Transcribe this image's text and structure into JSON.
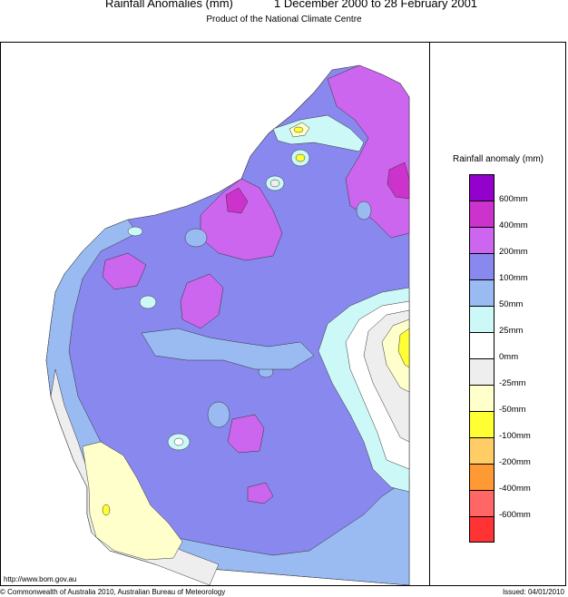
{
  "header": {
    "title": "Rainfall Anomalies (mm)",
    "period": "1 December 2000 to 28 February 2001",
    "subtitle": "Product of the National Climate Centre"
  },
  "legend": {
    "title": "Rainfall anomaly (mm)",
    "items": [
      {
        "label": "600mm",
        "color": "#9400cc"
      },
      {
        "label": "400mm",
        "color": "#cc33cc"
      },
      {
        "label": "200mm",
        "color": "#cc66ee"
      },
      {
        "label": "100mm",
        "color": "#8888ee"
      },
      {
        "label": "50mm",
        "color": "#99bbf2"
      },
      {
        "label": "25mm",
        "color": "#ccf8f8"
      },
      {
        "label": "0mm",
        "color": "#ffffff"
      },
      {
        "label": "-25mm",
        "color": "#eeeeee"
      },
      {
        "label": "-50mm",
        "color": "#ffffcc"
      },
      {
        "label": "-100mm",
        "color": "#ffff33"
      },
      {
        "label": "-200mm",
        "color": "#ffcc66"
      },
      {
        "label": "-400mm",
        "color": "#ff9933"
      },
      {
        "label": "-600mm",
        "color": "#ff6666"
      },
      {
        "label": "",
        "color": "#ff3333"
      }
    ]
  },
  "footer": {
    "url": "http://www.bom.gov.au",
    "copyright": "© Commonwealth of Australia 2010, Australian Bureau of Meteorology",
    "issued": "Issued: 04/01/2010"
  }
}
